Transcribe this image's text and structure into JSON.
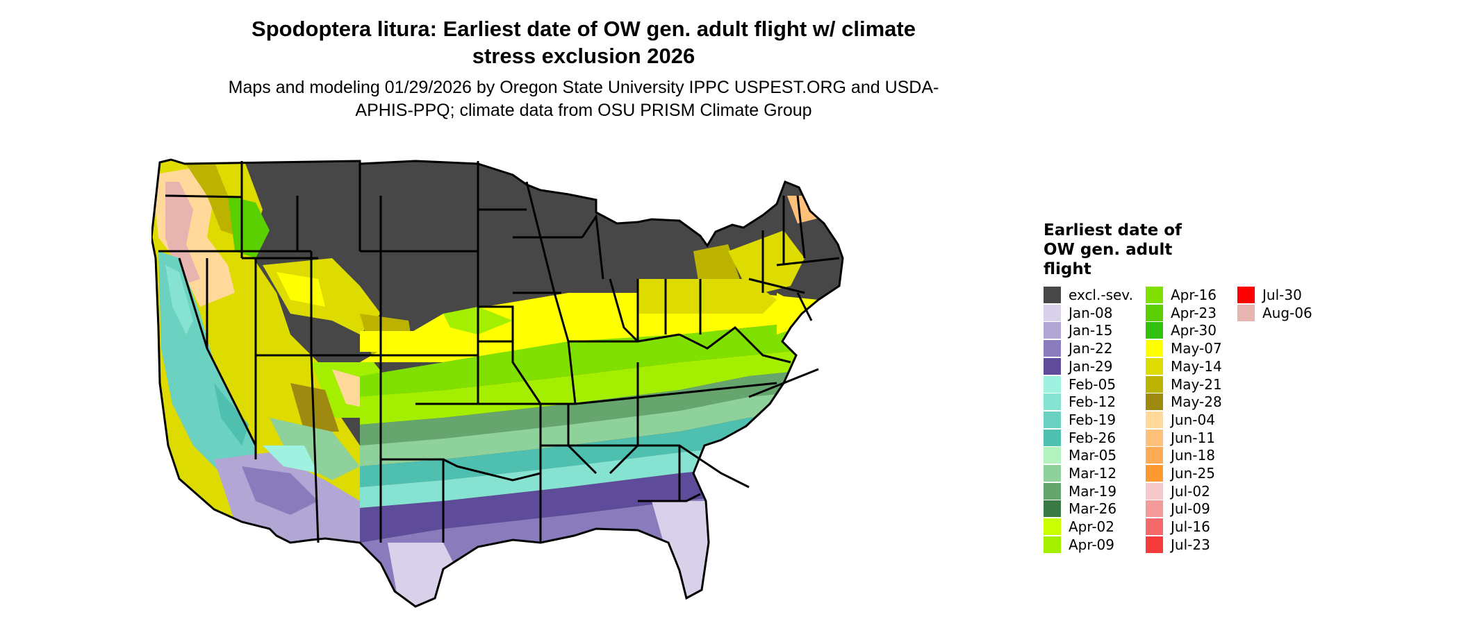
{
  "header": {
    "title": "Spodoptera litura: Earliest date of OW gen. adult flight w/ climate stress exclusion 2026",
    "subtitle": "Maps and modeling 01/29/2026 by Oregon State University IPPC USPEST.ORG and USDA-APHIS-PPQ; climate data from OSU PRISM Climate Group"
  },
  "legend": {
    "title": "Earliest date of OW gen. adult flight",
    "items": [
      {
        "label": "excl.-sev.",
        "color": "#474747"
      },
      {
        "label": "Jan-08",
        "color": "#d9d0ea"
      },
      {
        "label": "Jan-15",
        "color": "#b2a6d4"
      },
      {
        "label": "Jan-22",
        "color": "#8a7bbd"
      },
      {
        "label": "Jan-29",
        "color": "#5e4b99"
      },
      {
        "label": "Feb-05",
        "color": "#9ff2e0"
      },
      {
        "label": "Feb-12",
        "color": "#86e3d1"
      },
      {
        "label": "Feb-19",
        "color": "#6bd1c0"
      },
      {
        "label": "Feb-26",
        "color": "#4fbfb0"
      },
      {
        "label": "Mar-05",
        "color": "#b4f2c0"
      },
      {
        "label": "Mar-12",
        "color": "#8ed19a"
      },
      {
        "label": "Mar-19",
        "color": "#66a66e"
      },
      {
        "label": "Mar-26",
        "color": "#3b7a45"
      },
      {
        "label": "Apr-02",
        "color": "#c9ff00"
      },
      {
        "label": "Apr-09",
        "color": "#a4ee00"
      },
      {
        "label": "Apr-16",
        "color": "#80e000"
      },
      {
        "label": "Apr-23",
        "color": "#5bd000"
      },
      {
        "label": "Apr-30",
        "color": "#33bf10"
      },
      {
        "label": "May-07",
        "color": "#ffff00"
      },
      {
        "label": "May-14",
        "color": "#dedb00"
      },
      {
        "label": "May-21",
        "color": "#bcb300"
      },
      {
        "label": "May-28",
        "color": "#9e8a10"
      },
      {
        "label": "Jun-04",
        "color": "#ffd89a"
      },
      {
        "label": "Jun-11",
        "color": "#ffc07a"
      },
      {
        "label": "Jun-18",
        "color": "#ffaa55"
      },
      {
        "label": "Jun-25",
        "color": "#ff9a33"
      },
      {
        "label": "Jul-02",
        "color": "#f5c9c9"
      },
      {
        "label": "Jul-09",
        "color": "#f49a9a"
      },
      {
        "label": "Jul-16",
        "color": "#f46a6a"
      },
      {
        "label": "Jul-23",
        "color": "#f43a3a"
      },
      {
        "label": "Jul-30",
        "color": "#ff0000"
      },
      {
        "label": "Aug-06",
        "color": "#e8b4b0"
      }
    ]
  }
}
